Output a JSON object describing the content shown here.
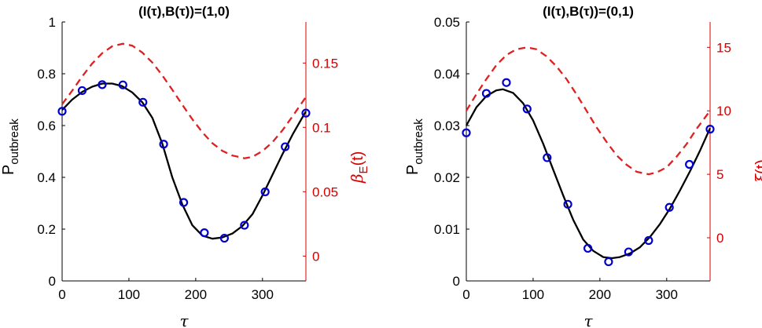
{
  "colors": {
    "axis": "#000000",
    "model_line": "#000000",
    "simulation_markers": "#0000cc",
    "right_axis": "#d40000",
    "right_series": "#e02020"
  },
  "chart_data": [
    {
      "type": "line",
      "title": "(I(τ),B(τ))=(1,0)",
      "xlabel": "τ",
      "ylabel": "P",
      "ylabel_sub": "outbreak",
      "ylabel_right": "β",
      "ylabel_right_sub": "E",
      "ylabel_right_suffix": "(t)",
      "xlim": [
        0,
        365
      ],
      "ylim": [
        0,
        1
      ],
      "ylim_right": [
        -0.0193,
        0.1819
      ],
      "xticks": [
        0,
        100,
        200,
        300
      ],
      "yticks": [
        0,
        0.2,
        0.4,
        0.6,
        0.8,
        1
      ],
      "yticks_right": [
        0,
        0.05,
        0.1,
        0.15
      ],
      "xticklabels": [
        "0",
        "100",
        "200",
        "300"
      ],
      "yticklabels": [
        "0",
        "0.2",
        "0.4",
        "0.6",
        "0.8",
        "1"
      ],
      "yticklabels_right": [
        "0",
        "0.05",
        "0.1",
        "0.15"
      ],
      "grid": false,
      "series": [
        {
          "style": "solid-line",
          "axis": "left",
          "x": [
            0,
            15,
            30,
            45,
            60,
            75,
            90,
            105,
            120,
            135,
            150,
            165,
            180,
            195,
            210,
            225,
            240,
            255,
            270,
            285,
            300,
            315,
            330,
            345,
            365
          ],
          "values": [
            0.66,
            0.7,
            0.73,
            0.75,
            0.762,
            0.762,
            0.752,
            0.728,
            0.69,
            0.63,
            0.53,
            0.4,
            0.295,
            0.215,
            0.175,
            0.163,
            0.168,
            0.183,
            0.212,
            0.258,
            0.33,
            0.41,
            0.49,
            0.565,
            0.655
          ]
        },
        {
          "style": "circle-markers",
          "axis": "left",
          "x": [
            0,
            30,
            60,
            91,
            121,
            152,
            182,
            213,
            243,
            273,
            304,
            334,
            365
          ],
          "values": [
            0.655,
            0.735,
            0.758,
            0.757,
            0.69,
            0.528,
            0.303,
            0.186,
            0.165,
            0.215,
            0.344,
            0.518,
            0.648
          ]
        },
        {
          "style": "dashed-line",
          "axis": "right",
          "x": [
            0,
            15,
            30,
            45,
            60,
            75,
            91,
            105,
            120,
            135,
            150,
            165,
            180,
            195,
            210,
            225,
            240,
            255,
            273,
            285,
            300,
            315,
            330,
            345,
            365
          ],
          "values": [
            0.118,
            0.1284,
            0.1395,
            0.1496,
            0.1577,
            0.163,
            0.165,
            0.1635,
            0.1582,
            0.1504,
            0.1404,
            0.1292,
            0.1175,
            0.1063,
            0.0961,
            0.0877,
            0.0817,
            0.0781,
            0.076,
            0.0771,
            0.0816,
            0.0885,
            0.0978,
            0.1086,
            0.1236
          ]
        }
      ]
    },
    {
      "type": "line",
      "title": "(I(τ),B(τ))=(0,1)",
      "xlabel": "τ",
      "ylabel": "P",
      "ylabel_sub": "outbreak",
      "ylabel_right": "ξ",
      "ylabel_right_sub": "",
      "ylabel_right_suffix": "(t)",
      "xlim": [
        0,
        365
      ],
      "ylim": [
        0,
        0.05
      ],
      "ylim_right": [
        -3.4,
        17.0
      ],
      "xticks": [
        0,
        100,
        200,
        300
      ],
      "yticks": [
        0,
        0.01,
        0.02,
        0.03,
        0.04,
        0.05
      ],
      "yticks_right": [
        0,
        5,
        10,
        15
      ],
      "xticklabels": [
        "0",
        "100",
        "200",
        "300"
      ],
      "yticklabels": [
        "0",
        "0.01",
        "0.02",
        "0.03",
        "0.04",
        "0.05"
      ],
      "yticklabels_right": [
        "0",
        "5",
        "10",
        "15"
      ],
      "grid": false,
      "series": [
        {
          "style": "solid-line",
          "axis": "left",
          "x": [
            0,
            15,
            30,
            45,
            55,
            70,
            85,
            100,
            115,
            130,
            145,
            160,
            175,
            190,
            205,
            218,
            230,
            245,
            260,
            275,
            290,
            305,
            320,
            335,
            350,
            365
          ],
          "values": [
            0.03,
            0.0335,
            0.0357,
            0.0368,
            0.037,
            0.0363,
            0.0343,
            0.031,
            0.0265,
            0.0215,
            0.0165,
            0.0118,
            0.008,
            0.0058,
            0.0046,
            0.0044,
            0.0046,
            0.0053,
            0.0065,
            0.0085,
            0.011,
            0.014,
            0.0175,
            0.0212,
            0.0252,
            0.0295
          ]
        },
        {
          "style": "circle-markers",
          "axis": "left",
          "x": [
            0,
            30,
            60,
            91,
            121,
            152,
            182,
            213,
            243,
            273,
            304,
            334,
            365
          ],
          "values": [
            0.0286,
            0.0362,
            0.0383,
            0.0332,
            0.0238,
            0.0148,
            0.0063,
            0.0037,
            0.0056,
            0.0078,
            0.0142,
            0.0225,
            0.0293
          ]
        },
        {
          "style": "dashed-line",
          "axis": "right",
          "x": [
            0,
            15,
            30,
            45,
            60,
            75,
            91,
            105,
            120,
            135,
            150,
            165,
            180,
            195,
            210,
            225,
            240,
            255,
            273,
            285,
            300,
            315,
            330,
            345,
            365
          ],
          "values": [
            10.0,
            11.3,
            12.5,
            13.6,
            14.4,
            14.85,
            15.0,
            14.85,
            14.3,
            13.5,
            12.5,
            11.3,
            10.0,
            8.7,
            7.55,
            6.5,
            5.75,
            5.2,
            5.0,
            5.15,
            5.55,
            6.4,
            7.4,
            8.6,
            10.0
          ]
        }
      ]
    }
  ]
}
